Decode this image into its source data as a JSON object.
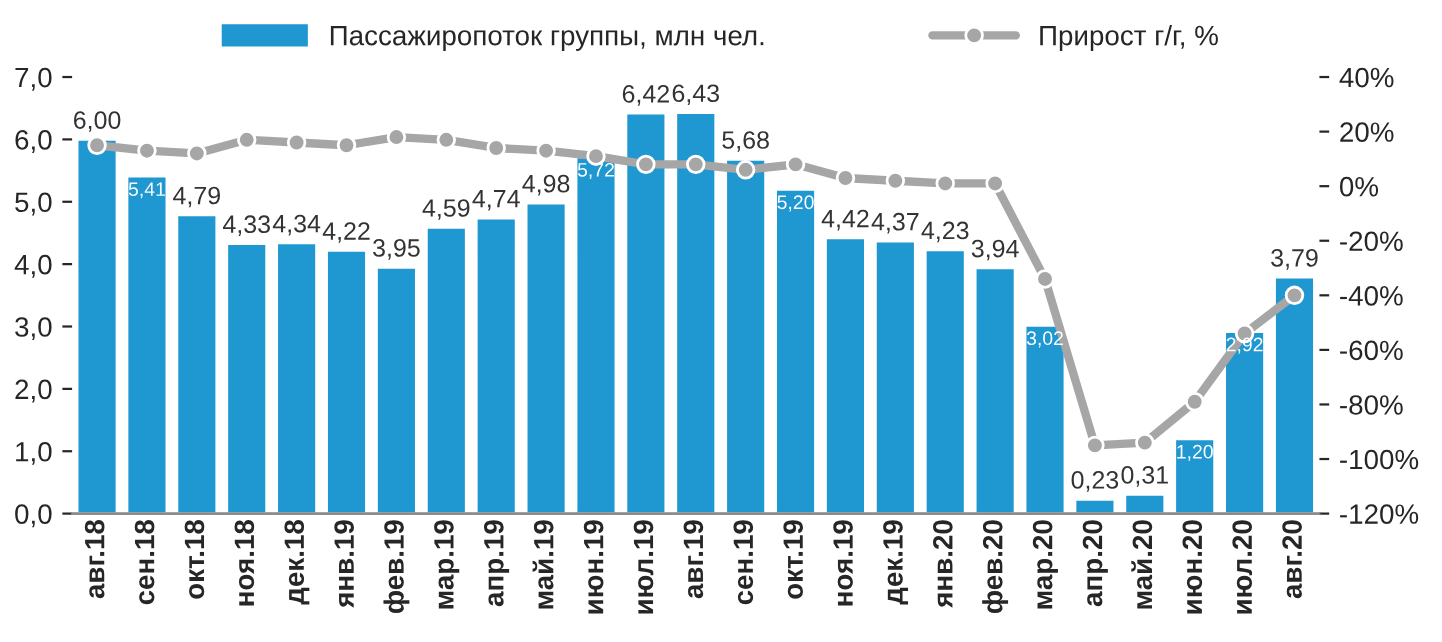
{
  "chart_data": {
    "type": "bar",
    "categories": [
      "авг.18",
      "сен.18",
      "окт.18",
      "ноя.18",
      "дек.18",
      "янв.19",
      "фев.19",
      "мар.19",
      "апр.19",
      "май.19",
      "июн.19",
      "июл.19",
      "авг.19",
      "сен.19",
      "окт.19",
      "ноя.19",
      "дек.19",
      "янв.20",
      "фев.20",
      "мар.20",
      "апр.20",
      "май.20",
      "июн.20",
      "июл.20",
      "авг.20"
    ],
    "series": [
      {
        "name": "Пассажиропоток группы, млн чел.",
        "color": "#1f97d0",
        "values": [
          6.0,
          5.41,
          4.79,
          4.33,
          4.34,
          4.22,
          3.95,
          4.59,
          4.74,
          4.98,
          5.72,
          6.42,
          6.43,
          5.68,
          5.2,
          4.42,
          4.37,
          4.23,
          3.94,
          3.02,
          0.23,
          0.31,
          1.2,
          2.92,
          3.79
        ],
        "value_labels": [
          "6,00",
          "5,41",
          "4,79",
          "4,33",
          "4,34",
          "4,22",
          "3,95",
          "4,59",
          "4,74",
          "4,98",
          "5,72",
          "6,42",
          "6,43",
          "5,68",
          "5,20",
          "4,42",
          "4,37",
          "4,23",
          "3,94",
          "3,02",
          "0,23",
          "0,31",
          "1,20",
          "2,92",
          "3,79"
        ]
      },
      {
        "name": "Прирост г/г, %",
        "type": "line",
        "axis": "y2",
        "color": "#a6a6a6",
        "marker": "circle",
        "line_style": "solid",
        "values": [
          15,
          13,
          12,
          17,
          16,
          15,
          18,
          17,
          14,
          13,
          11,
          8,
          8,
          6,
          8,
          3,
          2,
          1,
          1,
          -34,
          -95,
          -94,
          -79,
          -54,
          -40
        ]
      }
    ],
    "ylim": [
      0,
      7
    ],
    "yticks": [
      {
        "value": 0,
        "label": "0,0"
      },
      {
        "value": 1,
        "label": "1,0"
      },
      {
        "value": 2,
        "label": "2,0"
      },
      {
        "value": 3,
        "label": "3,0"
      },
      {
        "value": 4,
        "label": "4,0"
      },
      {
        "value": 5,
        "label": "5,0"
      },
      {
        "value": 6,
        "label": "6,0"
      },
      {
        "value": 7,
        "label": "7,0"
      }
    ],
    "y2lim": [
      -120,
      40
    ],
    "y2ticks": [
      {
        "value": -120,
        "label": "-120%"
      },
      {
        "value": -100,
        "label": "-100%"
      },
      {
        "value": -80,
        "label": "-80%"
      },
      {
        "value": -60,
        "label": "-60%"
      },
      {
        "value": -40,
        "label": "-40%"
      },
      {
        "value": -20,
        "label": "-20%"
      },
      {
        "value": 0,
        "label": "0%"
      },
      {
        "value": 20,
        "label": "20%"
      },
      {
        "value": 40,
        "label": "40%"
      }
    ],
    "grid": false,
    "legend": "top"
  }
}
